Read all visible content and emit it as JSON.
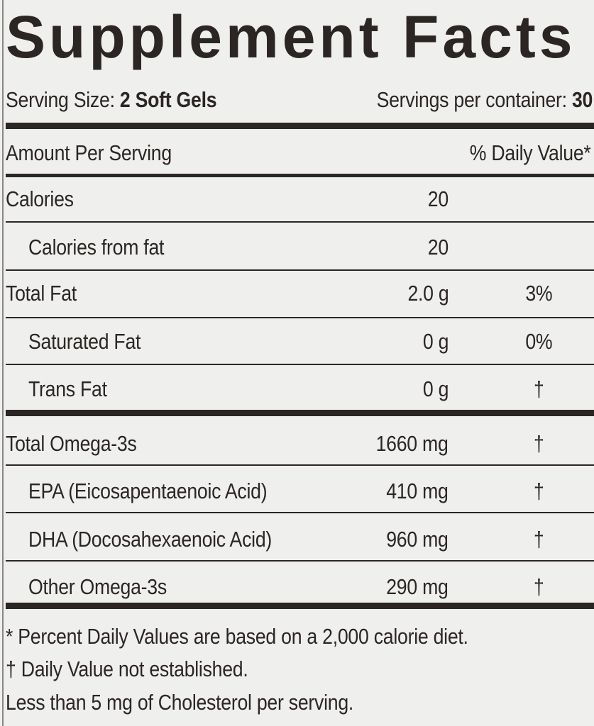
{
  "title": "Supplement Facts",
  "serving_size_label": "Serving Size:",
  "serving_size_value": "2 Soft Gels",
  "servings_per_container_label": "Servings per container:",
  "servings_per_container_value": "30",
  "header": {
    "amount": "Amount Per Serving",
    "dv": "% Daily Value*"
  },
  "rows": [
    {
      "name": "Calories",
      "amount": "20",
      "dv": ""
    },
    {
      "name": "Calories from fat",
      "amount": "20",
      "dv": ""
    },
    {
      "name": "Total Fat",
      "amount": "2.0 g",
      "dv": "3%"
    },
    {
      "name": "Saturated Fat",
      "amount": "0 g",
      "dv": "0%"
    },
    {
      "name": "Trans Fat",
      "amount": "0 g",
      "dv": "†"
    },
    {
      "name": "Total Omega-3s",
      "amount": "1660 mg",
      "dv": "†"
    },
    {
      "name": "EPA (Eicosapentaenoic Acid)",
      "amount": "410 mg",
      "dv": "†"
    },
    {
      "name": "DHA (Docosahexaenoic Acid)",
      "amount": "960 mg",
      "dv": "†"
    },
    {
      "name": "Other Omega-3s",
      "amount": "290 mg",
      "dv": "†"
    }
  ],
  "footnotes": [
    "* Percent Daily Values are based on a 2,000 calorie diet.",
    "† Daily Value not established.",
    "Less than 5 mg of Cholesterol per serving."
  ]
}
